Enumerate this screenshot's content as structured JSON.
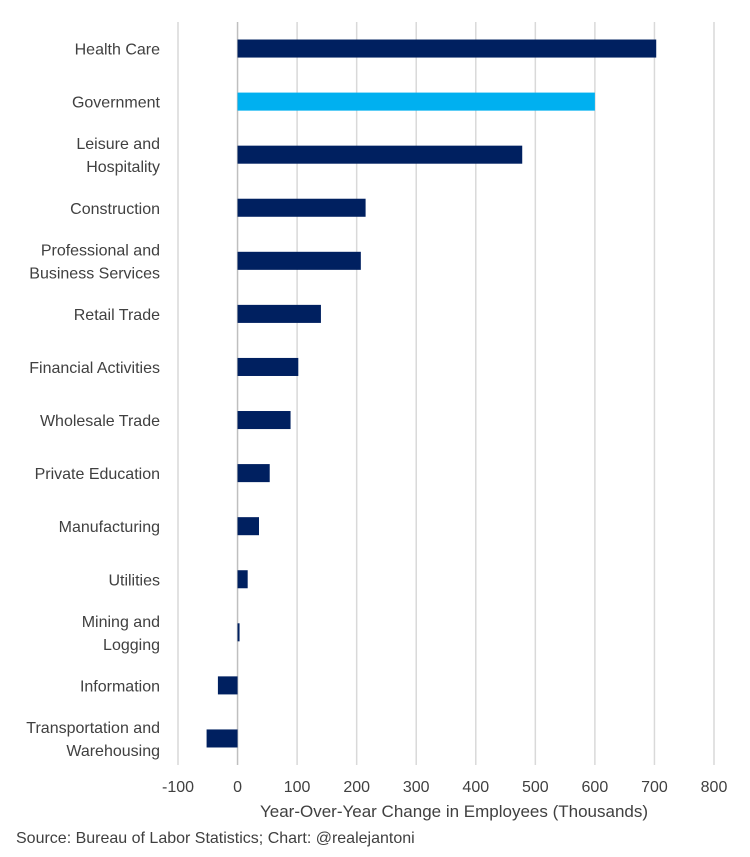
{
  "chart_data": {
    "type": "bar",
    "orientation": "horizontal",
    "categories": [
      [
        "Health Care"
      ],
      [
        "Government"
      ],
      [
        "Leisure and",
        "Hospitality"
      ],
      [
        "Construction"
      ],
      [
        "Professional and",
        "Business Services"
      ],
      [
        "Retail Trade"
      ],
      [
        "Financial Activities"
      ],
      [
        "Wholesale Trade"
      ],
      [
        "Private Education"
      ],
      [
        "Manufacturing"
      ],
      [
        "Utilities"
      ],
      [
        "Mining and",
        "Logging"
      ],
      [
        "Information"
      ],
      [
        "Transportation and",
        "Warehousing"
      ]
    ],
    "values": [
      703,
      600,
      478,
      215,
      207,
      140,
      102,
      89,
      54,
      36,
      17,
      3,
      -33,
      -52
    ],
    "highlight_index": 1,
    "colors": {
      "bar": "#002060",
      "highlight": "#00B0F0",
      "grid": "#D9D9D9",
      "text": "#404040"
    },
    "xlim": [
      -100,
      800
    ],
    "xticks": [
      -100,
      0,
      100,
      200,
      300,
      400,
      500,
      600,
      700,
      800
    ],
    "xlabel": "Year-Over-Year  Change in Employees (Thousands)",
    "ylabel": "",
    "grid": true
  },
  "source_text": "Source: Bureau of Labor Statistics; Chart: @realejantoni"
}
